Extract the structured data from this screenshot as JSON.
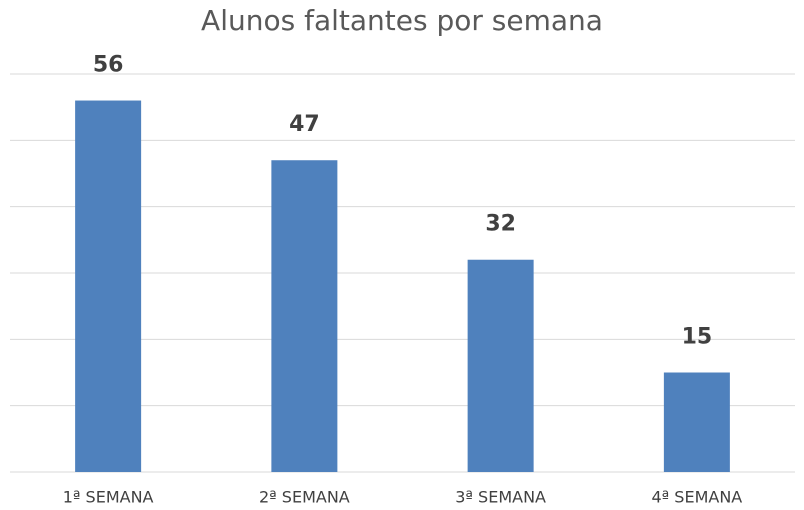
{
  "chart_data": {
    "type": "bar",
    "title": "Alunos faltantes por semana",
    "categories": [
      "1ª SEMANA",
      "2ª SEMANA",
      "3ª SEMANA",
      "4ª SEMANA"
    ],
    "values": [
      56,
      47,
      32,
      15
    ],
    "color": "#4f81bd",
    "ylim": [
      0,
      60
    ],
    "yticks": [
      0,
      10,
      20,
      30,
      40,
      50,
      60
    ],
    "grid": true
  }
}
